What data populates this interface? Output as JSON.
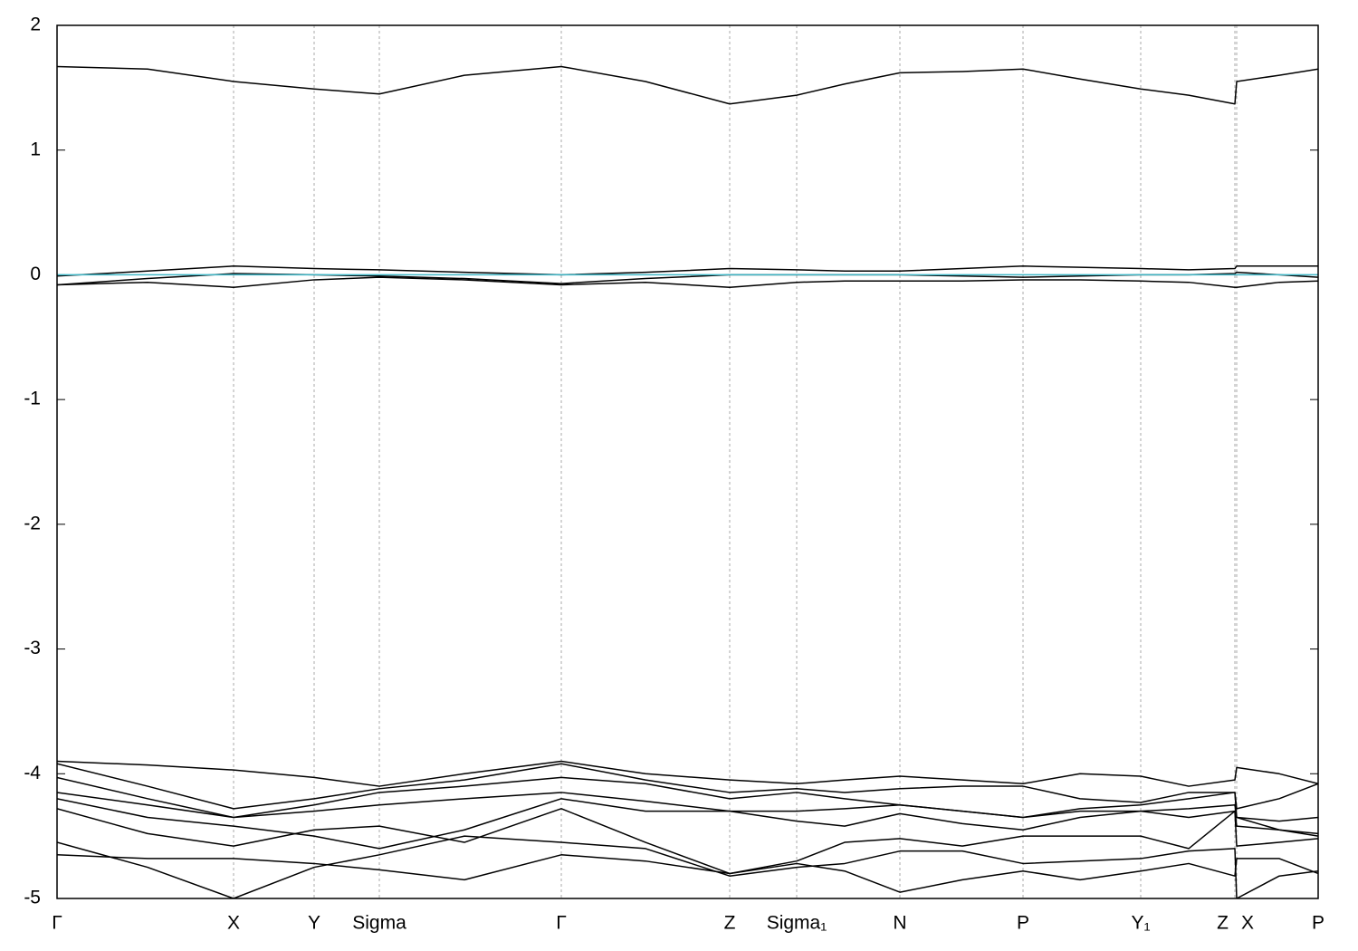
{
  "chart_data": {
    "type": "line",
    "x": [
      0,
      1.0,
      1.95,
      2.84,
      3.56,
      4.5,
      5.57,
      6.5,
      7.43,
      8.17,
      8.7,
      9.31,
      10.0,
      10.67,
      11.3,
      11.97,
      12.5,
      13.01,
      13.03,
      13.5,
      13.93
    ],
    "xlim": [
      0,
      13.93
    ],
    "xticks": [
      {
        "value": 0,
        "label": "Γ"
      },
      {
        "value": 1.95,
        "label": "X"
      },
      {
        "value": 2.84,
        "label": "Y"
      },
      {
        "value": 3.56,
        "label": "Sigma"
      },
      {
        "value": 5.57,
        "label": "Γ"
      },
      {
        "value": 7.43,
        "label": "Z"
      },
      {
        "value": 8.17,
        "label": "Sigma₁"
      },
      {
        "value": 9.31,
        "label": "N"
      },
      {
        "value": 10.67,
        "label": "P"
      },
      {
        "value": 11.97,
        "label": "Y₁"
      },
      {
        "value": 13.01,
        "label": "Z"
      },
      {
        "value": 13.03,
        "label": "X"
      },
      {
        "value": 13.93,
        "label": "P"
      }
    ],
    "ylim": [
      -5,
      2
    ],
    "yticks": [
      -5,
      -4,
      -3,
      -2,
      -1,
      0,
      1,
      2
    ],
    "grid": "x",
    "series": [
      {
        "color": "#000000",
        "values": [
          1.67,
          1.65,
          1.55,
          1.49,
          1.45,
          1.6,
          1.67,
          1.55,
          1.37,
          1.44,
          1.53,
          1.62,
          1.63,
          1.65,
          1.57,
          1.49,
          1.44,
          1.37,
          1.55,
          1.6,
          1.65
        ]
      },
      {
        "color": "#000000",
        "values": [
          -0.01,
          0.03,
          0.07,
          0.05,
          0.04,
          0.02,
          0.0,
          0.02,
          0.05,
          0.04,
          0.03,
          0.03,
          0.05,
          0.07,
          0.06,
          0.05,
          0.04,
          0.05,
          0.07,
          0.07,
          0.07
        ]
      },
      {
        "color": "#000000",
        "values": [
          -0.08,
          -0.03,
          0.01,
          0.0,
          -0.01,
          -0.03,
          -0.07,
          -0.03,
          0.0,
          0.0,
          0.0,
          0.0,
          -0.01,
          -0.02,
          -0.01,
          0.0,
          0.0,
          0.01,
          0.02,
          0.0,
          -0.02
        ]
      },
      {
        "color": "#000000",
        "values": [
          -0.08,
          -0.06,
          -0.1,
          -0.04,
          -0.02,
          -0.04,
          -0.08,
          -0.06,
          -0.1,
          -0.06,
          -0.05,
          -0.05,
          -0.05,
          -0.04,
          -0.04,
          -0.05,
          -0.06,
          -0.1,
          -0.1,
          -0.06,
          -0.05
        ]
      },
      {
        "color": "#40b8c8",
        "values": [
          0,
          0,
          0,
          0,
          0,
          0,
          0,
          0,
          0,
          0,
          0,
          0,
          0,
          0,
          0,
          0,
          0,
          0,
          0,
          0,
          0
        ]
      },
      {
        "color": "#000000",
        "values": [
          -3.9,
          -3.93,
          -3.97,
          -4.03,
          -4.1,
          -4.0,
          -3.9,
          -4.0,
          -4.05,
          -4.08,
          -4.05,
          -4.02,
          -4.05,
          -4.08,
          -4.0,
          -4.02,
          -4.1,
          -4.05,
          -3.95,
          -4.0,
          -4.08
        ]
      },
      {
        "color": "#000000",
        "values": [
          -3.92,
          -4.1,
          -4.28,
          -4.2,
          -4.12,
          -4.05,
          -3.92,
          -4.05,
          -4.15,
          -4.12,
          -4.15,
          -4.12,
          -4.1,
          -4.1,
          -4.2,
          -4.23,
          -4.15,
          -4.15,
          -4.28,
          -4.2,
          -4.08
        ]
      },
      {
        "color": "#000000",
        "values": [
          -4.03,
          -4.2,
          -4.35,
          -4.25,
          -4.15,
          -4.1,
          -4.03,
          -4.08,
          -4.2,
          -4.15,
          -4.2,
          -4.25,
          -4.3,
          -4.35,
          -4.28,
          -4.25,
          -4.2,
          -4.15,
          -4.35,
          -4.38,
          -4.35
        ]
      },
      {
        "color": "#000000",
        "values": [
          -4.15,
          -4.25,
          -4.35,
          -4.3,
          -4.25,
          -4.2,
          -4.15,
          -4.22,
          -4.3,
          -4.3,
          -4.28,
          -4.25,
          -4.3,
          -4.35,
          -4.3,
          -4.3,
          -4.28,
          -4.25,
          -4.35,
          -4.45,
          -4.48
        ]
      },
      {
        "color": "#000000",
        "values": [
          -4.2,
          -4.35,
          -4.42,
          -4.5,
          -4.6,
          -4.45,
          -4.2,
          -4.3,
          -4.3,
          -4.38,
          -4.42,
          -4.32,
          -4.4,
          -4.45,
          -4.35,
          -4.3,
          -4.35,
          -4.3,
          -4.42,
          -4.45,
          -4.5
        ]
      },
      {
        "color": "#000000",
        "values": [
          -4.28,
          -4.48,
          -4.58,
          -4.45,
          -4.42,
          -4.55,
          -4.28,
          -4.55,
          -4.8,
          -4.7,
          -4.55,
          -4.52,
          -4.58,
          -4.5,
          -4.5,
          -4.5,
          -4.6,
          -4.3,
          -4.58,
          -4.55,
          -4.52
        ]
      },
      {
        "color": "#000000",
        "values": [
          -4.55,
          -4.75,
          -5.0,
          -4.75,
          -4.65,
          -4.5,
          -4.55,
          -4.6,
          -4.82,
          -4.75,
          -4.72,
          -4.62,
          -4.62,
          -4.72,
          -4.7,
          -4.68,
          -4.62,
          -4.6,
          -5.0,
          -4.82,
          -4.78
        ]
      },
      {
        "color": "#000000",
        "values": [
          -4.65,
          -4.68,
          -4.68,
          -4.72,
          -4.77,
          -4.85,
          -4.65,
          -4.7,
          -4.8,
          -4.72,
          -4.78,
          -4.95,
          -4.85,
          -4.78,
          -4.85,
          -4.78,
          -4.72,
          -4.82,
          -4.68,
          -4.68,
          -4.8
        ]
      }
    ]
  }
}
